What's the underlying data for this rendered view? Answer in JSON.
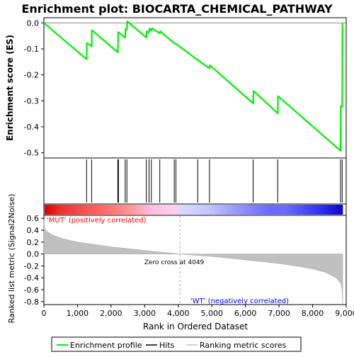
{
  "title": "Enrichment plot: BIOCARTA_CHEMICAL_PATHWAY",
  "colors": {
    "enrichment": "#00ee00",
    "hit": "#000000",
    "ranking_fill": "#c0c0c0",
    "zero_line": "#888888",
    "pos_label": "#ff0000",
    "neg_label": "#0000ff"
  },
  "chart_data": [
    {
      "type": "line",
      "name": "enrichment-profile",
      "ylabel": "Enrichment score (ES)",
      "ylim": [
        -0.52,
        0.02
      ],
      "yticks": [
        "0.0",
        "-0.1",
        "-0.2",
        "-0.3",
        "-0.4",
        "-0.5"
      ],
      "ytick_values": [
        0.0,
        -0.1,
        -0.2,
        -0.3,
        -0.4,
        -0.5
      ],
      "points": [
        [
          0,
          0.0
        ],
        [
          1270,
          -0.14
        ],
        [
          1280,
          -0.077
        ],
        [
          1420,
          -0.09
        ],
        [
          1430,
          -0.028
        ],
        [
          2200,
          -0.113
        ],
        [
          2210,
          -0.035
        ],
        [
          2420,
          -0.057
        ],
        [
          2430,
          -0.024
        ],
        [
          2470,
          -0.025
        ],
        [
          2480,
          0.006
        ],
        [
          3050,
          -0.056
        ],
        [
          3060,
          -0.033
        ],
        [
          3130,
          -0.037
        ],
        [
          3140,
          -0.022
        ],
        [
          3200,
          -0.03
        ],
        [
          3220,
          -0.021
        ],
        [
          3450,
          -0.04
        ],
        [
          3460,
          -0.032
        ],
        [
          3880,
          -0.078
        ],
        [
          3950,
          -0.082
        ],
        [
          4580,
          -0.143
        ],
        [
          4930,
          -0.175
        ],
        [
          4940,
          -0.163
        ],
        [
          6230,
          -0.31
        ],
        [
          6240,
          -0.262
        ],
        [
          6960,
          -0.348
        ],
        [
          6970,
          -0.282
        ],
        [
          8830,
          -0.492
        ],
        [
          8840,
          -0.32
        ],
        [
          8880,
          -0.323
        ],
        [
          8890,
          0.0
        ]
      ]
    },
    {
      "type": "scatter",
      "name": "hits",
      "x": [
        1270,
        1420,
        2200,
        2220,
        2420,
        2470,
        3050,
        3130,
        3200,
        3450,
        3880,
        3930,
        4580,
        4930,
        6230,
        6960,
        8830,
        8880
      ]
    },
    {
      "type": "area",
      "name": "ranked-list-metric",
      "ylabel": "Ranked list metric (Signal2Noise)",
      "xlabel": "Rank in Ordered Dataset",
      "xlim": [
        0,
        9000
      ],
      "xticks": [
        "0",
        "1,000",
        "2,000",
        "3,000",
        "4,000",
        "5,000",
        "6,000",
        "7,000",
        "8,000",
        "9,000"
      ],
      "xtick_values": [
        0,
        1000,
        2000,
        3000,
        4000,
        5000,
        6000,
        7000,
        8000,
        9000
      ],
      "ylim": [
        -0.85,
        0.65
      ],
      "yticks": [
        "0.6",
        "0.4",
        "0.2",
        "0.0",
        "-0.2",
        "-0.4",
        "-0.6",
        "-0.8"
      ],
      "ytick_values": [
        0.6,
        0.4,
        0.2,
        0.0,
        -0.2,
        -0.4,
        -0.6,
        -0.8
      ],
      "points": [
        [
          0,
          0.58
        ],
        [
          20,
          0.43
        ],
        [
          100,
          0.37
        ],
        [
          300,
          0.31
        ],
        [
          600,
          0.25
        ],
        [
          1000,
          0.2
        ],
        [
          1500,
          0.16
        ],
        [
          2000,
          0.12
        ],
        [
          2500,
          0.09
        ],
        [
          3000,
          0.06
        ],
        [
          3500,
          0.03
        ],
        [
          4049,
          0.0
        ],
        [
          4500,
          -0.02
        ],
        [
          5000,
          -0.04
        ],
        [
          5500,
          -0.07
        ],
        [
          6000,
          -0.1
        ],
        [
          6500,
          -0.13
        ],
        [
          7000,
          -0.16
        ],
        [
          7500,
          -0.2
        ],
        [
          8000,
          -0.25
        ],
        [
          8400,
          -0.31
        ],
        [
          8700,
          -0.4
        ],
        [
          8850,
          -0.5
        ],
        [
          8880,
          -0.6
        ],
        [
          8895,
          -0.84
        ]
      ],
      "zero_cross_label": "Zero cross at 4049",
      "zero_cross": 4049,
      "pos_label": "'MUT' (positively correlated)",
      "neg_label": "'WT' (negatively correlated)"
    }
  ],
  "heatmap_bar": {
    "max_rank": 8900,
    "stops": [
      {
        "rank": 0,
        "color": "#dd0000"
      },
      {
        "rank": 500,
        "color": "#ee3333"
      },
      {
        "rank": 1700,
        "color": "#ff6666"
      },
      {
        "rank": 2600,
        "color": "#ff9999"
      },
      {
        "rank": 3150,
        "color": "#ffbbdd"
      },
      {
        "rank": 3900,
        "color": "#ffd0f0"
      },
      {
        "rank": 4100,
        "color": "#d8d8ff"
      },
      {
        "rank": 4900,
        "color": "#c4c4ff"
      },
      {
        "rank": 5900,
        "color": "#8f8fff"
      },
      {
        "rank": 6700,
        "color": "#6a6aff"
      },
      {
        "rank": 7200,
        "color": "#6a6aff"
      },
      {
        "rank": 8200,
        "color": "#3333ee"
      },
      {
        "rank": 8900,
        "color": "#1100cc"
      }
    ]
  },
  "legend": [
    {
      "label": "Enrichment profile",
      "icon": "green-line"
    },
    {
      "label": "Hits",
      "icon": "black-line"
    },
    {
      "label": "Ranking metric scores",
      "icon": "gray-line"
    }
  ]
}
